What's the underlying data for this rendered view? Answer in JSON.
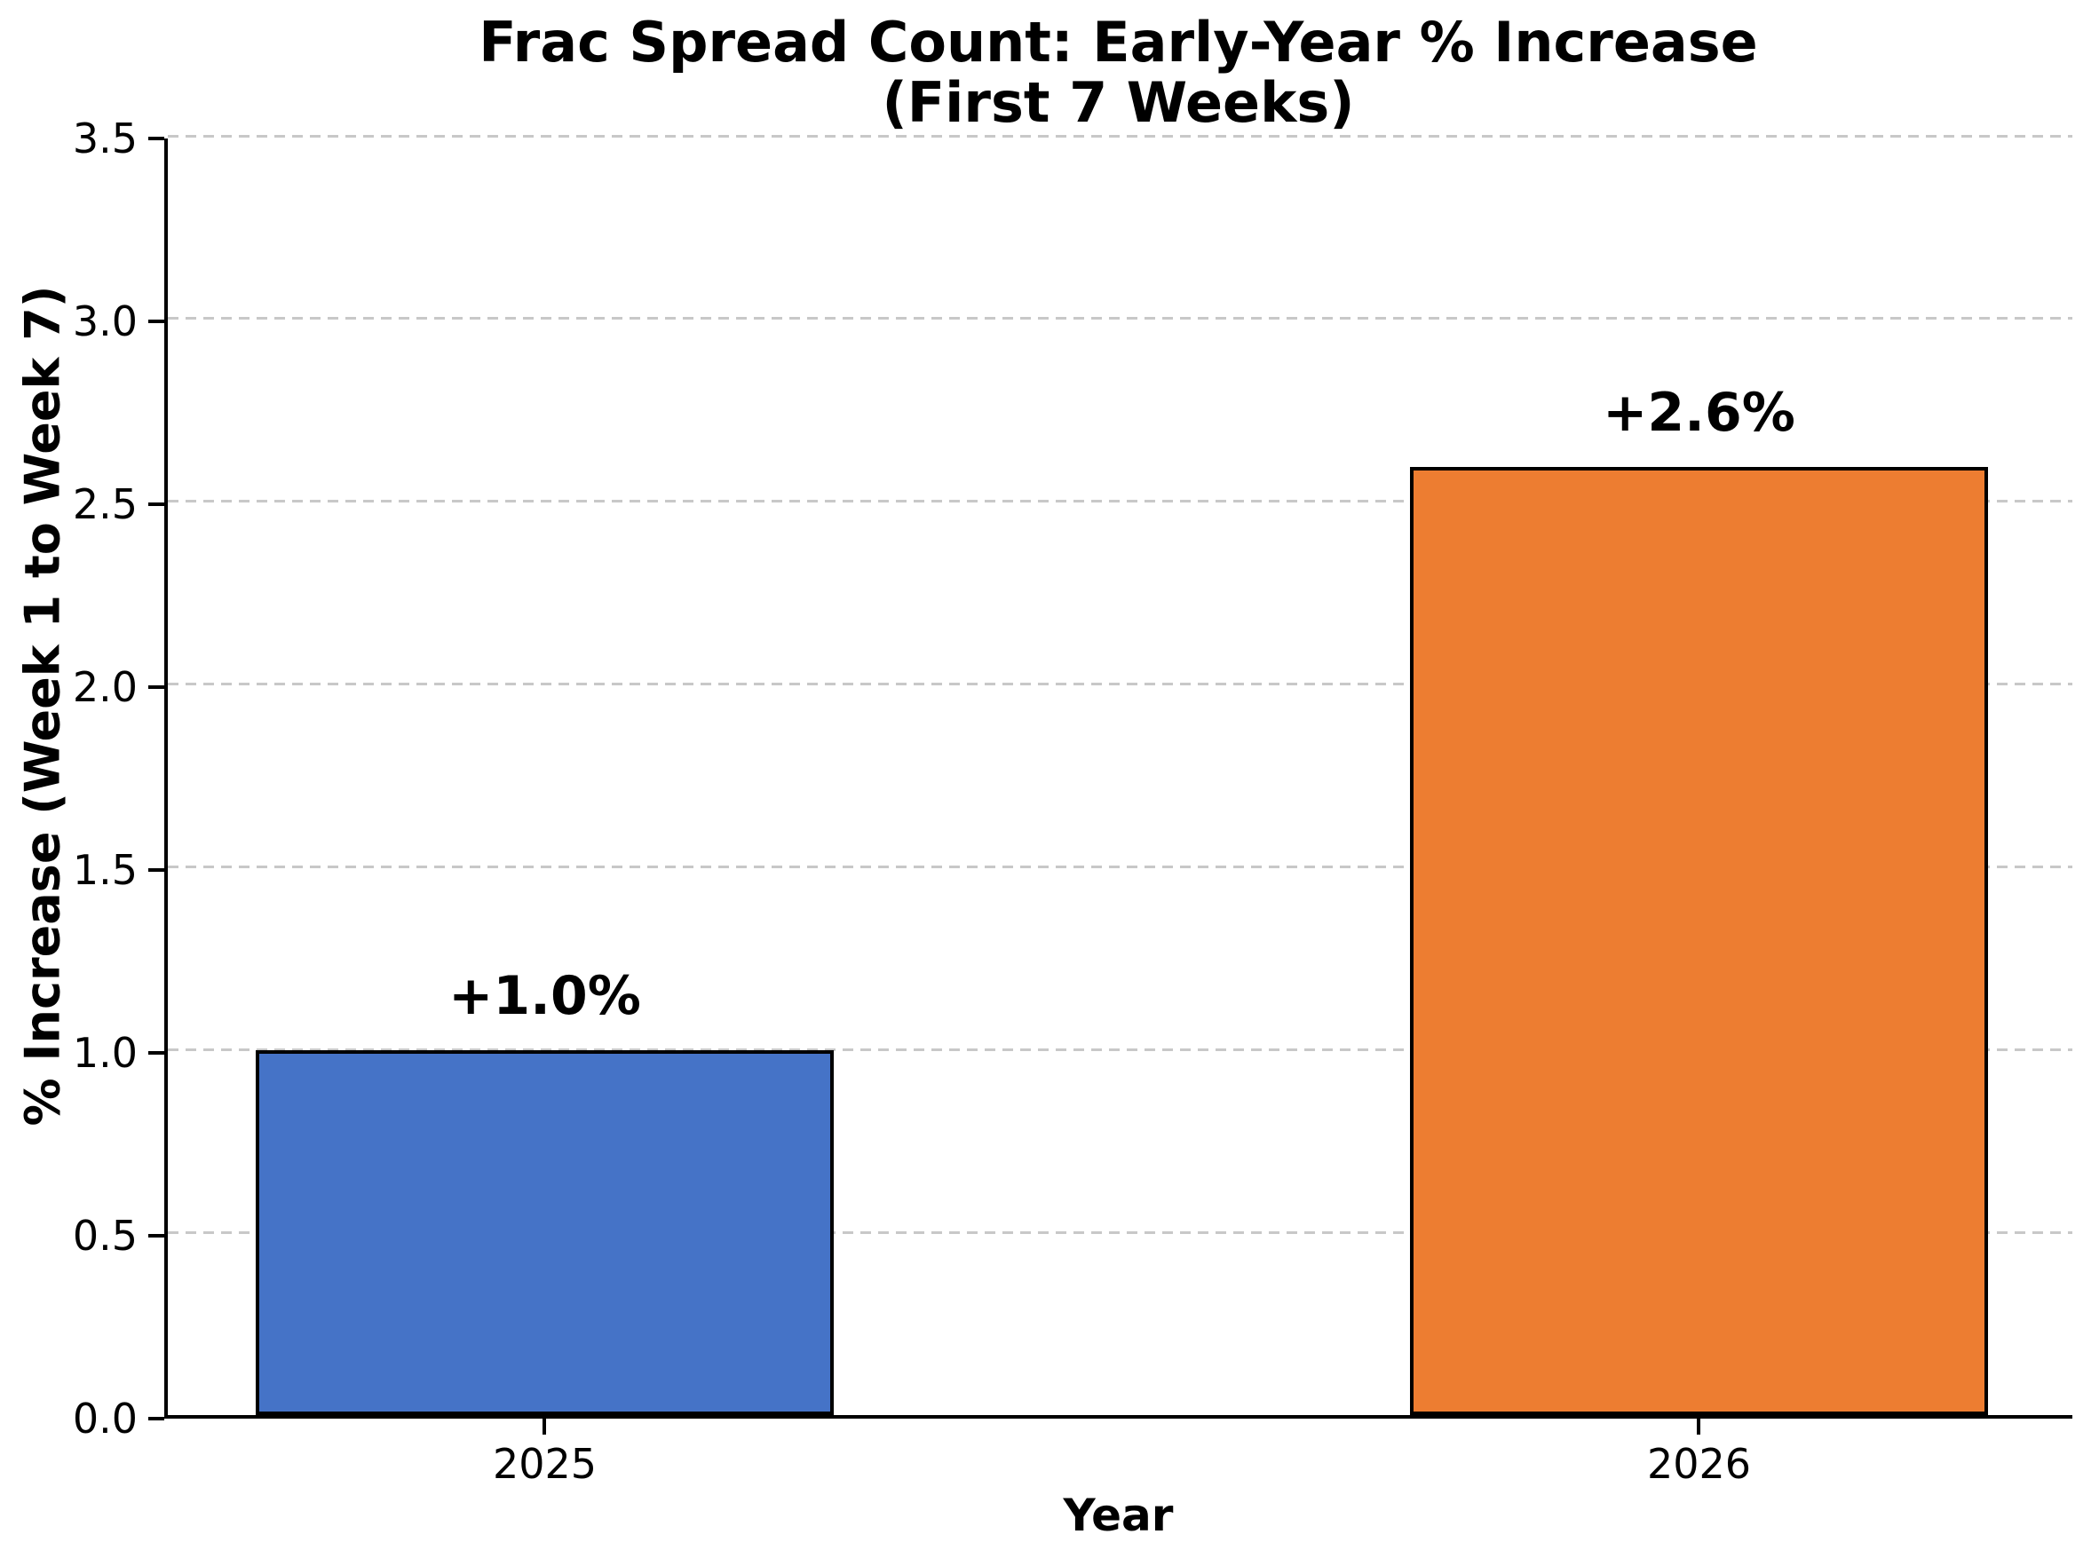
{
  "chart_data": {
    "type": "bar",
    "title": "Frac Spread Count: Early-Year % Increase",
    "subtitle": "(First 7 Weeks)",
    "xlabel": "Year",
    "ylabel": "% Increase (Week 1 to Week 7)",
    "categories": [
      "2025",
      "2026"
    ],
    "values": [
      1.0,
      2.6
    ],
    "bar_labels": [
      "+1.0%",
      "+2.6%"
    ],
    "bar_colors": [
      "#4573C7",
      "#ED7D31"
    ],
    "bar_edge_color": "#000000",
    "ylim": [
      0,
      3.5
    ],
    "yticks": [
      "0.0",
      "0.5",
      "1.0",
      "1.5",
      "2.0",
      "2.5",
      "3.0",
      "3.5"
    ],
    "grid": "horizontal dashed gridlines, light gray",
    "legend": "none",
    "background": "#ffffff"
  }
}
